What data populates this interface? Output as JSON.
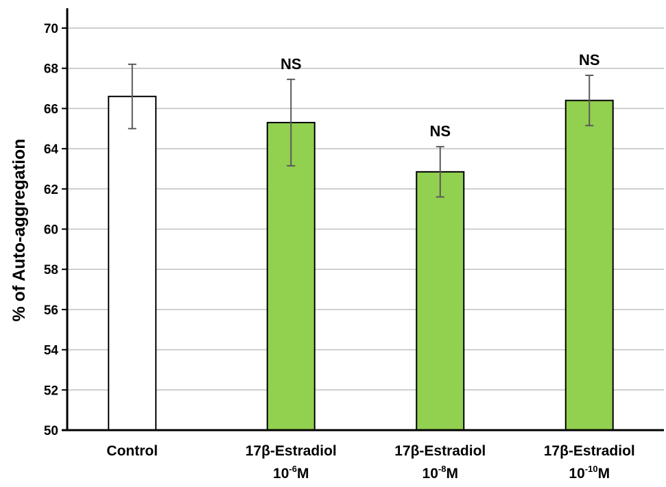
{
  "chart_data": {
    "type": "bar",
    "title": "",
    "xlabel": "",
    "ylabel": "% of Auto-aggregation",
    "ylim": [
      50,
      70
    ],
    "yticks": [
      50,
      52,
      54,
      56,
      58,
      60,
      62,
      64,
      66,
      68,
      70
    ],
    "grid": true,
    "categories": [
      {
        "line1": "Control",
        "line2_base": "",
        "line2_exp": "",
        "line2_suffix": ""
      },
      {
        "line1": "17β-Estradiol",
        "line2_base": "10",
        "line2_exp": "-6",
        "line2_suffix": "M"
      },
      {
        "line1": "17β-Estradiol",
        "line2_base": "10",
        "line2_exp": "-8",
        "line2_suffix": "M"
      },
      {
        "line1": "17β-Estradiol",
        "line2_base": "10",
        "line2_exp": "-10",
        "line2_suffix": "M"
      }
    ],
    "values": [
      66.6,
      65.3,
      62.85,
      66.4
    ],
    "errors": [
      1.6,
      2.15,
      1.25,
      1.25
    ],
    "annotations": [
      "",
      "NS",
      "NS",
      "NS"
    ],
    "colors": {
      "bars": [
        "#ffffff",
        "#92d050",
        "#92d050",
        "#92d050"
      ],
      "bar_stroke": "#000000",
      "error_bar": "#595959",
      "grid": "#bfbfbf",
      "axis": "#000000",
      "text": "#000000"
    }
  }
}
